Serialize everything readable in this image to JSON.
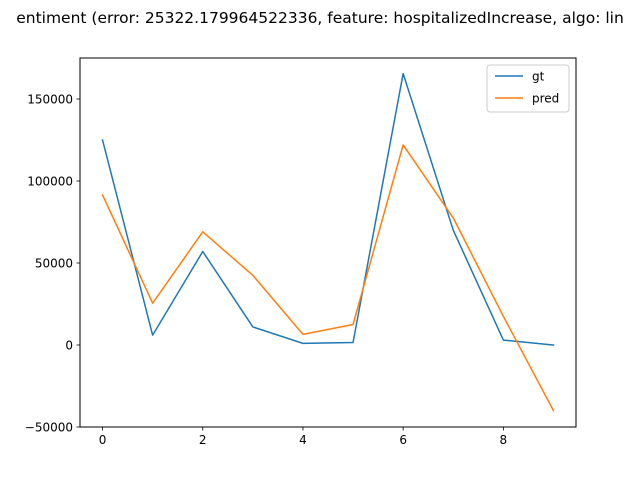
{
  "chart_data": {
    "type": "line",
    "title": "entiment (error: 25322.179964522336, feature: hospitalizedIncrease, algo: lin",
    "xlabel": "",
    "ylabel": "",
    "xlim": [
      -0.45,
      9.45
    ],
    "ylim": [
      -50000,
      175000
    ],
    "x_ticks": [
      0,
      2,
      4,
      6,
      8
    ],
    "y_ticks": [
      -50000,
      0,
      50000,
      100000,
      150000
    ],
    "x_tick_labels": [
      "0",
      "2",
      "4",
      "6",
      "8"
    ],
    "y_tick_labels": [
      "−50000",
      "0",
      "50000",
      "100000",
      "150000"
    ],
    "grid": false,
    "legend_position": "top-right",
    "x": [
      0,
      1,
      2,
      3,
      4,
      5,
      6,
      7,
      8,
      9
    ],
    "series": [
      {
        "name": "gt",
        "color": "#1f77b4",
        "values": [
          125000,
          6000,
          57000,
          11000,
          1000,
          1500,
          165500,
          70000,
          3000,
          0
        ]
      },
      {
        "name": "pred",
        "color": "#ff7f0e",
        "values": [
          91500,
          25500,
          69000,
          42500,
          6500,
          12500,
          122000,
          77500,
          17500,
          -40000
        ]
      }
    ]
  }
}
